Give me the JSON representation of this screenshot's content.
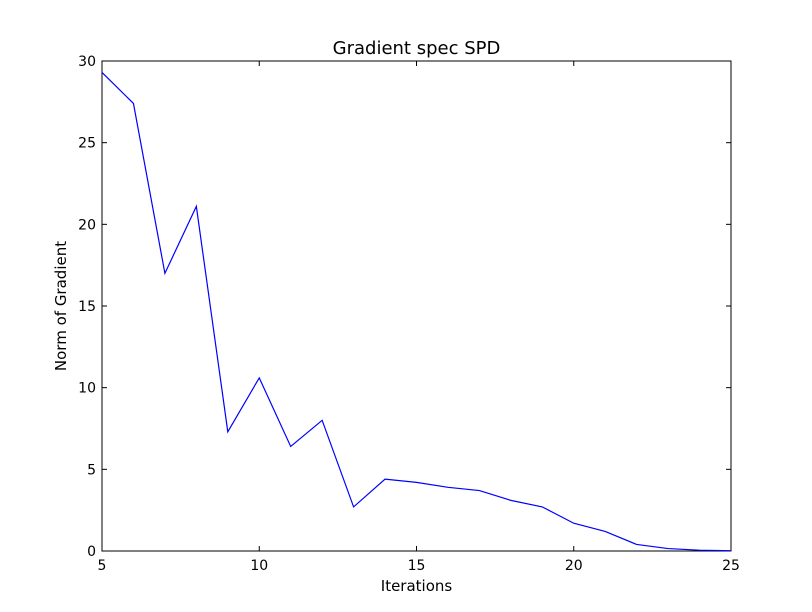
{
  "chart_data": {
    "type": "line",
    "title": "Gradient spec SPD",
    "xlabel": "Iterations",
    "ylabel": "Norm of Gradient",
    "xlim": [
      5,
      25
    ],
    "ylim": [
      0,
      30
    ],
    "xticks": [
      5,
      10,
      15,
      20,
      25
    ],
    "yticks": [
      0,
      5,
      10,
      15,
      20,
      25,
      30
    ],
    "grid": false,
    "legend": "none",
    "series": [
      {
        "color": "#0000ff",
        "x": [
          5,
          6,
          7,
          8,
          9,
          10,
          11,
          12,
          13,
          14,
          15,
          16,
          17,
          18,
          19,
          20,
          21,
          22,
          23,
          24,
          25
        ],
        "y": [
          29.3,
          27.4,
          17.0,
          21.1,
          7.3,
          10.6,
          6.4,
          8.0,
          2.7,
          4.4,
          4.2,
          3.9,
          3.7,
          3.1,
          2.7,
          1.7,
          1.2,
          0.4,
          0.15,
          0.05,
          0.02
        ]
      }
    ]
  }
}
